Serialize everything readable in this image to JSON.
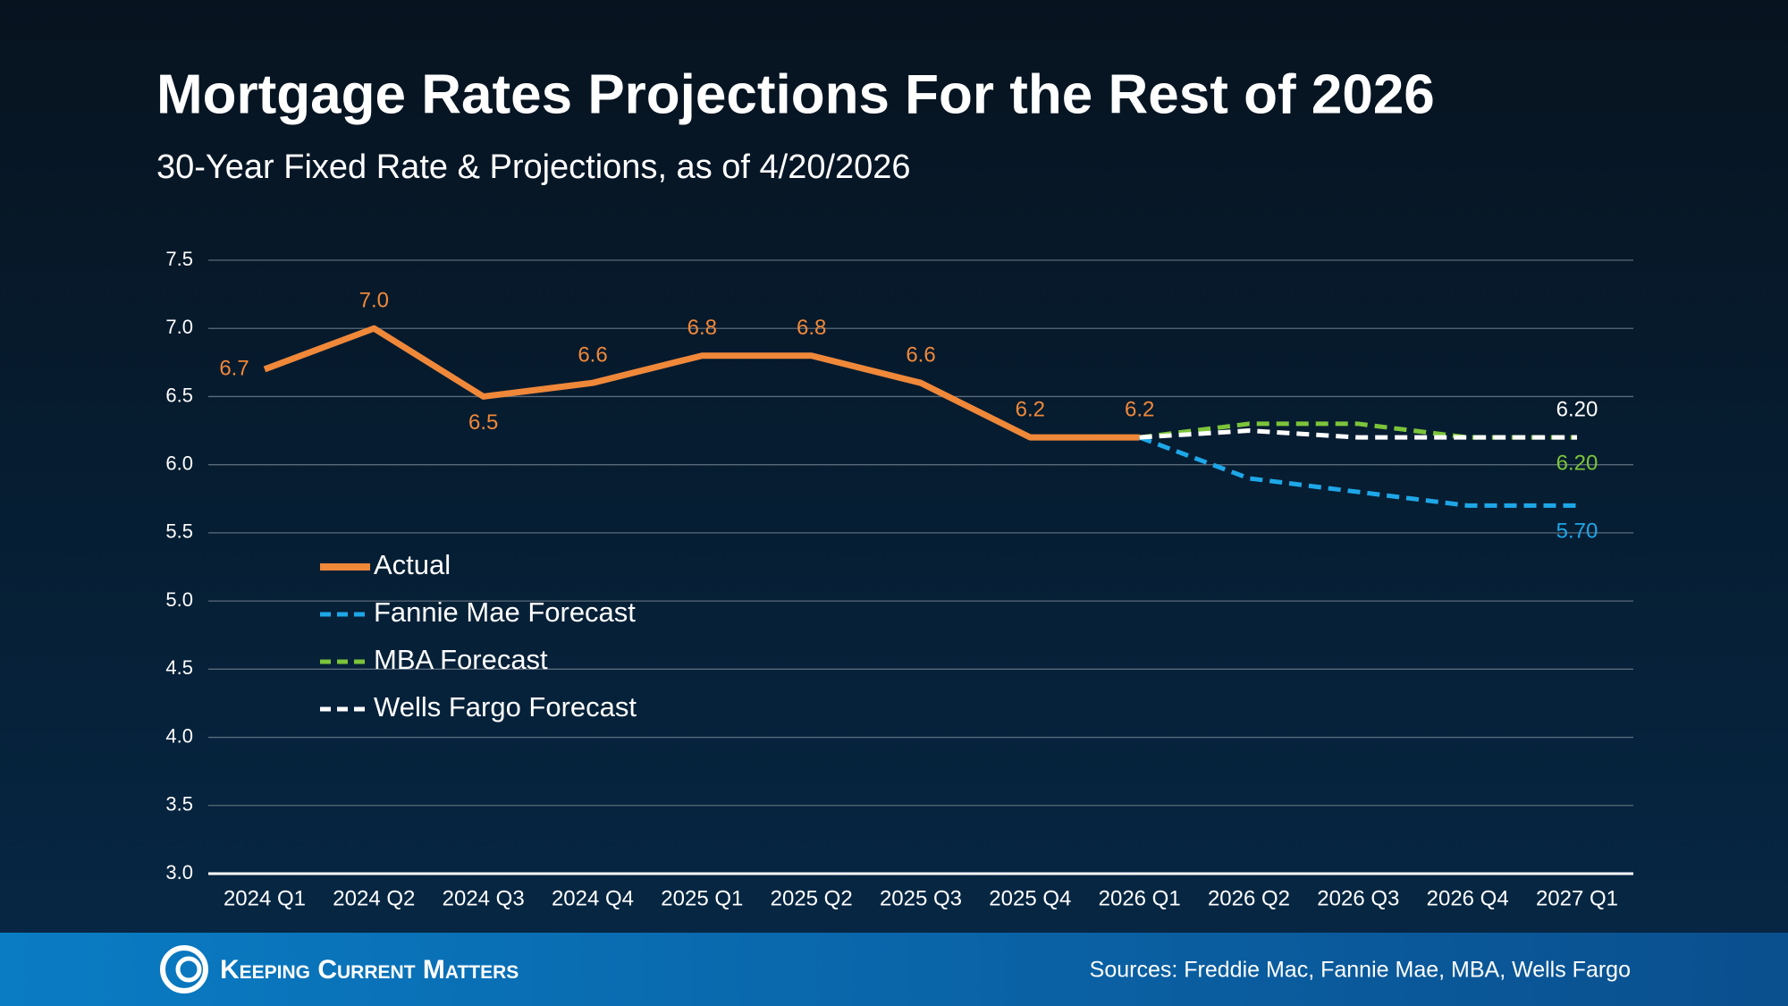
{
  "chart_data": {
    "type": "line",
    "title": "Mortgage Rates Projections For the Rest of 2026",
    "subtitle": "30-Year Fixed Rate & Projections, as of 4/20/2026",
    "categories": [
      "2024 Q1",
      "2024 Q2",
      "2024 Q3",
      "2024 Q4",
      "2025 Q1",
      "2025 Q2",
      "2025 Q3",
      "2025 Q4",
      "2026 Q1",
      "2026 Q2",
      "2026 Q3",
      "2026 Q4",
      "2027 Q1"
    ],
    "series": [
      {
        "name": "Actual",
        "color": "#f0883a",
        "line_style": "solid",
        "values": [
          6.7,
          7.0,
          6.5,
          6.6,
          6.8,
          6.8,
          6.6,
          6.2,
          6.2,
          null,
          null,
          null,
          null
        ],
        "value_labels": [
          "6.7",
          "7.0",
          "6.5",
          "6.6",
          "6.8",
          "6.8",
          "6.6",
          "6.2",
          "6.2",
          null,
          null,
          null,
          null
        ]
      },
      {
        "name": "Fannie Mae Forecast",
        "color": "#1ea7e8",
        "line_style": "dashed",
        "values": [
          null,
          null,
          null,
          null,
          null,
          null,
          null,
          null,
          6.2,
          5.9,
          5.8,
          5.7,
          5.7
        ],
        "value_labels": [
          null,
          null,
          null,
          null,
          null,
          null,
          null,
          null,
          null,
          null,
          null,
          null,
          "5.70"
        ]
      },
      {
        "name": "MBA Forecast",
        "color": "#7cc43a",
        "line_style": "dashed",
        "values": [
          null,
          null,
          null,
          null,
          null,
          null,
          null,
          null,
          6.2,
          6.3,
          6.3,
          6.2,
          6.2
        ],
        "value_labels": [
          null,
          null,
          null,
          null,
          null,
          null,
          null,
          null,
          null,
          null,
          null,
          null,
          "6.20"
        ]
      },
      {
        "name": "Wells Fargo Forecast",
        "color": "#ffffff",
        "line_style": "dashed",
        "values": [
          null,
          null,
          null,
          null,
          null,
          null,
          null,
          null,
          6.2,
          6.25,
          6.2,
          6.2,
          6.2
        ],
        "value_labels": [
          null,
          null,
          null,
          null,
          null,
          null,
          null,
          null,
          null,
          null,
          null,
          null,
          "6.20"
        ]
      }
    ],
    "ylim": [
      3.0,
      7.5
    ],
    "yticks": [
      {
        "value": 3.0,
        "label": "3.0"
      },
      3.5,
      {
        "value": 4.0,
        "label": "4.0"
      },
      4.5,
      {
        "value": 5.0,
        "label": "5.0"
      },
      5.5,
      {
        "value": 6.0,
        "label": "6.0"
      },
      6.5,
      {
        "value": 7.0,
        "label": "7.0"
      },
      7.5
    ],
    "grid": true,
    "legend": "lower-left"
  },
  "footer": {
    "brand": "Keeping Current Matters",
    "sources": "Sources: Freddie Mac, Fannie Mae, MBA, Wells Fargo"
  }
}
